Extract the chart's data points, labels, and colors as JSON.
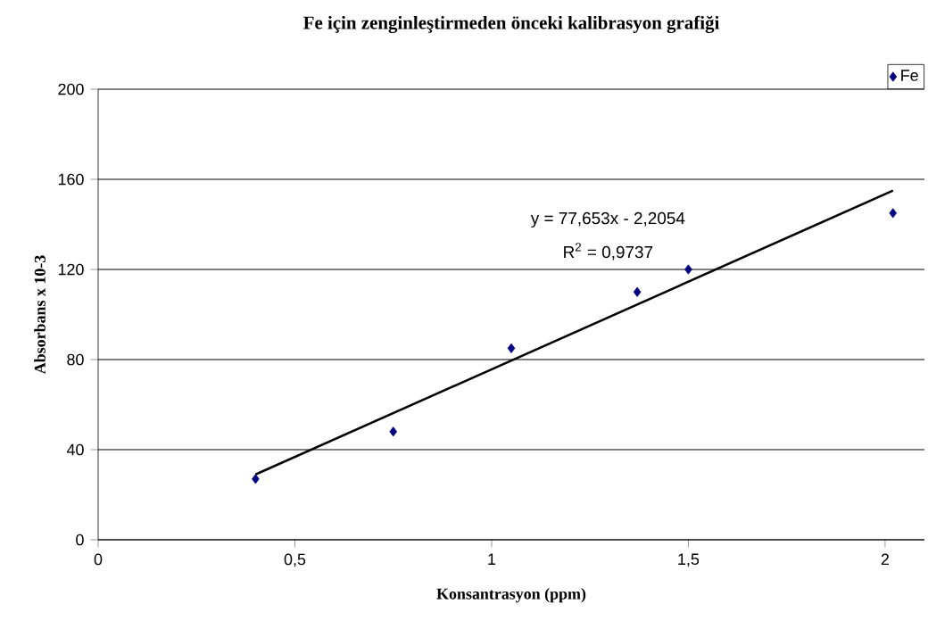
{
  "chart_data": {
    "type": "scatter",
    "title": "Fe için zenginleştirmeden önceki kalibrasyon grafiği",
    "xlabel": "Konsantrasyon (ppm)",
    "ylabel": "Absorbans x 10-3",
    "annotations": [
      "y = 77,653x - 2,2054",
      "R$^{2}$ = 0,9737"
    ],
    "xlim": [
      0,
      2.1
    ],
    "ylim": [
      0,
      200
    ],
    "xticks": [
      0,
      {
        "value": 0.5,
        "label": "0,5"
      },
      1,
      {
        "value": 1.5,
        "label": "1,5"
      },
      2
    ],
    "yticks": [
      0,
      40,
      80,
      120,
      160,
      200
    ],
    "grid": "y",
    "legend": "top right",
    "series": [
      {
        "name": "Fe",
        "marker": "diamond",
        "color": "#000080",
        "x": [
          0.4,
          0.75,
          1.05,
          1.37,
          1.5,
          2.02
        ],
        "values": [
          27,
          48,
          85,
          110,
          120,
          145
        ]
      },
      {
        "type": "line",
        "marker": "none",
        "color": "#000000",
        "x": [
          0.4,
          2.02
        ],
        "values": [
          29,
          155
        ]
      }
    ]
  }
}
